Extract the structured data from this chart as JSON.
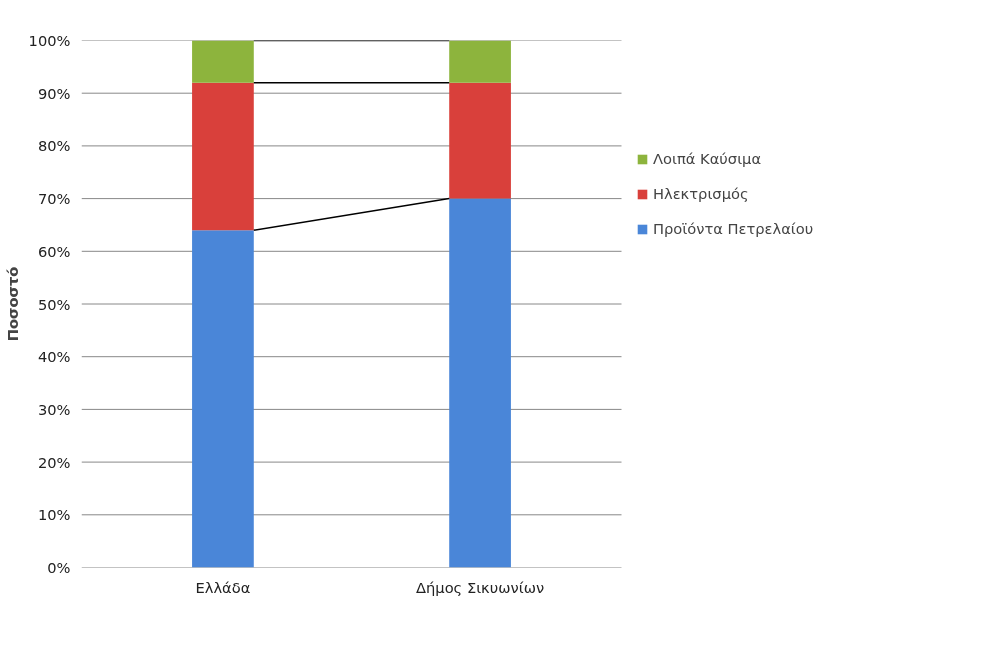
{
  "chart_data": {
    "type": "bar",
    "stacked": true,
    "ylabel": "Ποσοστό",
    "categories": [
      "Ελλάδα",
      "Δήμος Σικυωνίων"
    ],
    "series": [
      {
        "name": "Προϊόντα Πετρελαίου",
        "color": "#4a86d8",
        "values": [
          64,
          70
        ]
      },
      {
        "name": "Ηλεκτρισμός",
        "color": "#d9403b",
        "values": [
          28,
          22
        ]
      },
      {
        "name": "Λοιπά Καύσιμα",
        "color": "#8db43d",
        "values": [
          8,
          8
        ]
      }
    ],
    "ylim": [
      0,
      100
    ],
    "yticks": [
      {
        "value": 0,
        "label": "0%"
      },
      {
        "value": 10,
        "label": "10%"
      },
      {
        "value": 20,
        "label": "20%"
      },
      {
        "value": 30,
        "label": "30%"
      },
      {
        "value": 40,
        "label": "40%"
      },
      {
        "value": 50,
        "label": "50%"
      },
      {
        "value": 60,
        "label": "60%"
      },
      {
        "value": 70,
        "label": "70%"
      },
      {
        "value": 80,
        "label": "80%"
      },
      {
        "value": 90,
        "label": "90%"
      },
      {
        "value": 100,
        "label": "100%"
      }
    ],
    "grid": "y",
    "legend": "right"
  }
}
